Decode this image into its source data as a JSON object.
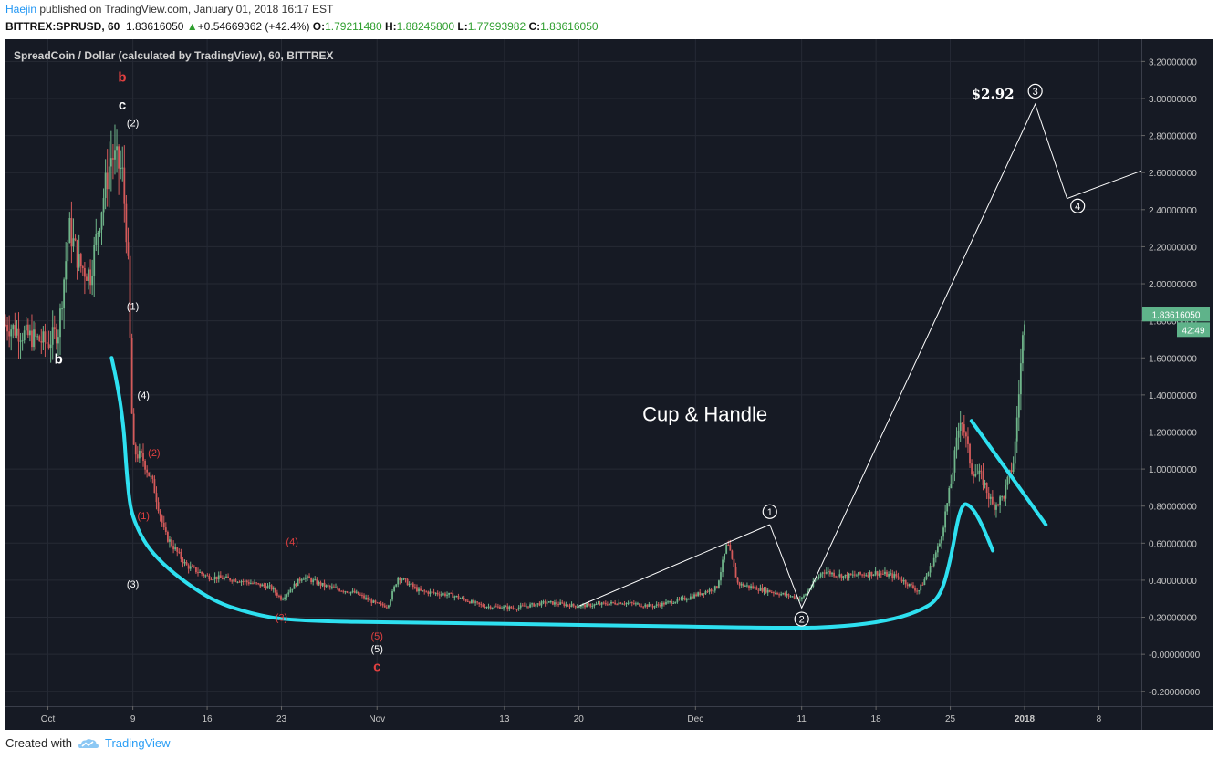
{
  "header": {
    "author": "Haejin",
    "published_text": "published on TradingView.com, January 01, 2018 16:17 EST",
    "symbol": "BITTREX:SPRUSD, 60",
    "last": "1.83616050",
    "change_arrow": "▲",
    "change": "+0.54669362 (+42.4%)",
    "o_label": "O:",
    "o_value": "1.79211480",
    "h_label": "H:",
    "h_value": "1.88245800",
    "l_label": "L:",
    "l_value": "1.77993982",
    "c_label": "C:",
    "c_value": "1.83616050"
  },
  "chart_title": "SpreadCoin / Dollar (calculated by TradingView), 60, BITTREX",
  "footer": {
    "created_with": "Created with",
    "brand": "TradingView",
    "logo_icon": "tradingview-cloud-icon"
  },
  "colors": {
    "background": "#161a24",
    "grid": "#262a35",
    "axis_text": "#c8c8c8",
    "up": "#6fb58a",
    "down": "#d45a5a",
    "cup_line": "#2ee0f0",
    "price_tag": "#5fb38a",
    "red_label": "#e04040",
    "white_label": "#ffffff"
  },
  "chart_data": {
    "type": "candlestick",
    "y_axis": {
      "ticks": [
        3.2,
        3.0,
        2.8,
        2.6,
        2.4,
        2.2,
        2.0,
        1.8,
        1.6,
        1.4,
        1.2,
        1.0,
        0.8,
        0.6,
        0.4,
        0.2,
        0.0,
        -0.2
      ],
      "tick_labels": [
        "3.20000000",
        "3.00000000",
        "2.80000000",
        "2.60000000",
        "2.40000000",
        "2.20000000",
        "2.00000000",
        "1.80000000",
        "1.60000000",
        "1.40000000",
        "1.20000000",
        "1.00000000",
        "0.80000000",
        "0.60000000",
        "0.40000000",
        "0.20000000",
        "-0.00000000",
        "-0.20000000"
      ],
      "range": [
        -0.28,
        3.32
      ]
    },
    "x_axis": {
      "range": [
        "2017-09-27",
        "2018-01-12"
      ],
      "ticks": [
        {
          "date": "2017-10-01",
          "label": "Oct"
        },
        {
          "date": "2017-10-09",
          "label": "9"
        },
        {
          "date": "2017-10-16",
          "label": "16"
        },
        {
          "date": "2017-10-23",
          "label": "23"
        },
        {
          "date": "2017-11-01",
          "label": "Nov"
        },
        {
          "date": "2017-11-13",
          "label": "13"
        },
        {
          "date": "2017-11-20",
          "label": "20"
        },
        {
          "date": "2017-12-01",
          "label": "Dec"
        },
        {
          "date": "2017-12-11",
          "label": "11"
        },
        {
          "date": "2017-12-18",
          "label": "18"
        },
        {
          "date": "2017-12-25",
          "label": "25"
        },
        {
          "date": "2018-01-01",
          "label": "2018",
          "bold": true
        },
        {
          "date": "2018-01-08",
          "label": "8"
        }
      ]
    },
    "price_path": [
      [
        "2017-09-27",
        1.78
      ],
      [
        "2017-09-29",
        1.72
      ],
      [
        "2017-10-01",
        1.68
      ],
      [
        "2017-10-02",
        1.75
      ],
      [
        "2017-10-03",
        2.3
      ],
      [
        "2017-10-04",
        2.1
      ],
      [
        "2017-10-05",
        2.05
      ],
      [
        "2017-10-06",
        2.4
      ],
      [
        "2017-10-07",
        2.7
      ],
      [
        "2017-10-08",
        2.6
      ],
      [
        "2017-10-08T12",
        2.2
      ],
      [
        "2017-10-09",
        1.1
      ],
      [
        "2017-10-10",
        1.05
      ],
      [
        "2017-10-11",
        0.9
      ],
      [
        "2017-10-12",
        0.65
      ],
      [
        "2017-10-14",
        0.48
      ],
      [
        "2017-10-16",
        0.42
      ],
      [
        "2017-10-19",
        0.4
      ],
      [
        "2017-10-22",
        0.36
      ],
      [
        "2017-10-23",
        0.3
      ],
      [
        "2017-10-25",
        0.42
      ],
      [
        "2017-10-27",
        0.37
      ],
      [
        "2017-10-30",
        0.33
      ],
      [
        "2017-11-01",
        0.27
      ],
      [
        "2017-11-02",
        0.26
      ],
      [
        "2017-11-03",
        0.42
      ],
      [
        "2017-11-05",
        0.34
      ],
      [
        "2017-11-08",
        0.32
      ],
      [
        "2017-11-11",
        0.26
      ],
      [
        "2017-11-14",
        0.25
      ],
      [
        "2017-11-17",
        0.28
      ],
      [
        "2017-11-20",
        0.26
      ],
      [
        "2017-11-24",
        0.28
      ],
      [
        "2017-11-27",
        0.26
      ],
      [
        "2017-11-30",
        0.3
      ],
      [
        "2017-12-03",
        0.36
      ],
      [
        "2017-12-04",
        0.6
      ],
      [
        "2017-12-05",
        0.38
      ],
      [
        "2017-12-08",
        0.34
      ],
      [
        "2017-12-11",
        0.3
      ],
      [
        "2017-12-13",
        0.45
      ],
      [
        "2017-12-15",
        0.42
      ],
      [
        "2017-12-18",
        0.44
      ],
      [
        "2017-12-20",
        0.42
      ],
      [
        "2017-12-22",
        0.34
      ],
      [
        "2017-12-23",
        0.45
      ],
      [
        "2017-12-24",
        0.6
      ],
      [
        "2017-12-25",
        0.9
      ],
      [
        "2017-12-26",
        1.3
      ],
      [
        "2017-12-27",
        1.0
      ],
      [
        "2017-12-28",
        0.95
      ],
      [
        "2017-12-29",
        0.8
      ],
      [
        "2017-12-30",
        0.85
      ],
      [
        "2017-12-31",
        1.05
      ],
      [
        "2018-01-01",
        1.84
      ]
    ],
    "series": [
      {
        "name": "",
        "points": [
          [
            "2017-11-20",
            0.26
          ],
          [
            "2017-12-08",
            0.7
          ]
        ]
      },
      {
        "name": "",
        "points": [
          [
            "2017-12-08",
            0.7
          ],
          [
            "2017-12-11",
            0.25
          ],
          [
            "2018-01-02",
            2.97
          ],
          [
            "2018-01-05",
            2.46
          ],
          [
            "2018-01-12",
            2.61
          ]
        ]
      }
    ],
    "last_price_tag": "1.83616050",
    "countdown_tag": "42:49",
    "annotations": [
      {
        "text": "b",
        "date": "2017-10-08",
        "y": 3.09,
        "color": "red"
      },
      {
        "text": "c",
        "date": "2017-10-08",
        "y": 2.94,
        "color": "white"
      },
      {
        "text": "(2)",
        "date": "2017-10-09",
        "y": 2.85,
        "color": "white"
      },
      {
        "text": "b",
        "date": "2017-10-02",
        "y": 1.57,
        "color": "white"
      },
      {
        "text": "(1)",
        "date": "2017-10-09",
        "y": 1.86,
        "color": "white"
      },
      {
        "text": "(4)",
        "date": "2017-10-10",
        "y": 1.38,
        "color": "white"
      },
      {
        "text": "(2)",
        "date": "2017-10-11",
        "y": 1.07,
        "color": "red"
      },
      {
        "text": "(1)",
        "date": "2017-10-10",
        "y": 0.73,
        "color": "red"
      },
      {
        "text": "(3)",
        "date": "2017-10-09",
        "y": 0.36,
        "color": "white"
      },
      {
        "text": "(4)",
        "date": "2017-10-24",
        "y": 0.59,
        "color": "red"
      },
      {
        "text": "(3)",
        "date": "2017-10-23",
        "y": 0.18,
        "color": "red"
      },
      {
        "text": "(5)",
        "date": "2017-11-01",
        "y": 0.08,
        "color": "red"
      },
      {
        "text": "(5)",
        "date": "2017-11-01",
        "y": 0.01,
        "color": "white"
      },
      {
        "text": "c",
        "date": "2017-11-01",
        "y": -0.09,
        "color": "red"
      },
      {
        "text": "Cup & Handle",
        "date": "2017-11-26",
        "y": 1.26,
        "color": "white"
      },
      {
        "text": "$2.92",
        "date": "2017-12-29",
        "y": 3.0,
        "color": "white"
      }
    ],
    "circled_labels": [
      {
        "text": "1",
        "date": "2017-12-08",
        "y": 0.77
      },
      {
        "text": "2",
        "date": "2017-12-11",
        "y": 0.19
      },
      {
        "text": "3",
        "date": "2018-01-02",
        "y": 3.04
      },
      {
        "text": "4",
        "date": "2018-01-06",
        "y": 2.42
      }
    ],
    "cup_path": [
      [
        "2017-10-07",
        1.6
      ],
      [
        "2017-10-08",
        1.35
      ],
      [
        "2017-10-08T12",
        0.9
      ],
      [
        "2017-10-09",
        0.72
      ],
      [
        "2017-10-11",
        0.52
      ],
      [
        "2017-10-16",
        0.3
      ],
      [
        "2017-10-20",
        0.22
      ],
      [
        "2017-10-24",
        0.18
      ],
      [
        "2017-11-05",
        0.17
      ],
      [
        "2017-11-20",
        0.16
      ],
      [
        "2017-12-10",
        0.14
      ],
      [
        "2017-12-15",
        0.15
      ],
      [
        "2017-12-19",
        0.18
      ],
      [
        "2017-12-22",
        0.23
      ],
      [
        "2017-12-24",
        0.3
      ],
      [
        "2017-12-25",
        0.5
      ],
      [
        "2017-12-26",
        0.82
      ],
      [
        "2017-12-27",
        0.8
      ],
      [
        "2017-12-28",
        0.7
      ],
      [
        "2017-12-29",
        0.56
      ]
    ],
    "handle_line": [
      [
        "2017-12-27",
        1.26
      ],
      [
        "2018-01-03",
        0.7
      ]
    ]
  }
}
